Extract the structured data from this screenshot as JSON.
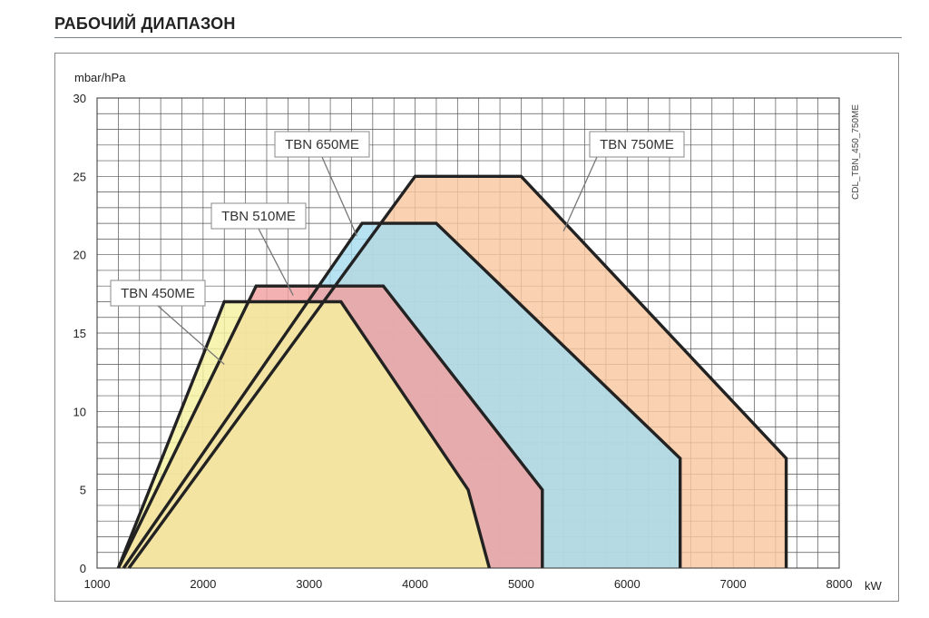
{
  "page": {
    "title": "РАБОЧИЙ ДИАПАЗОН",
    "figure_code": "CDL_TBN_450_750ME"
  },
  "chart_data": {
    "type": "area",
    "xlabel": "kW",
    "ylabel": "mbar/hPa",
    "xlim": [
      1000,
      8000
    ],
    "ylim": [
      0,
      30
    ],
    "x_ticks": [
      1000,
      2000,
      3000,
      4000,
      5000,
      6000,
      7000,
      8000
    ],
    "y_ticks": [
      0,
      5,
      10,
      15,
      20,
      25,
      30
    ],
    "grid": true,
    "series": [
      {
        "name": "TBN 750ME",
        "fill": "#f9c8a0",
        "stroke": "#222222",
        "points": [
          [
            1300,
            0
          ],
          [
            4000,
            25
          ],
          [
            5000,
            25
          ],
          [
            7500,
            7
          ],
          [
            7500,
            0
          ]
        ]
      },
      {
        "name": "TBN 650ME",
        "fill": "#a6dcef",
        "stroke": "#222222",
        "points": [
          [
            1250,
            0
          ],
          [
            3500,
            22
          ],
          [
            4200,
            22
          ],
          [
            6500,
            7
          ],
          [
            6500,
            0
          ]
        ]
      },
      {
        "name": "TBN 510ME",
        "fill": "#f0a0a0",
        "stroke": "#222222",
        "points": [
          [
            1200,
            0
          ],
          [
            2500,
            18
          ],
          [
            3700,
            18
          ],
          [
            5200,
            5
          ],
          [
            5200,
            0
          ]
        ]
      },
      {
        "name": "TBN 450ME",
        "fill": "#f5f0a0",
        "stroke": "#222222",
        "points": [
          [
            1200,
            0
          ],
          [
            2200,
            17
          ],
          [
            3300,
            17
          ],
          [
            4500,
            5
          ],
          [
            4700,
            0
          ]
        ]
      }
    ],
    "annotations": [
      {
        "text": "TBN 450ME",
        "series": "TBN 450ME",
        "point": [
          2200,
          13
        ]
      },
      {
        "text": "TBN 510ME",
        "series": "TBN 510ME",
        "point": [
          2850,
          17.4
        ]
      },
      {
        "text": "TBN 650ME",
        "series": "TBN 650ME",
        "point": [
          3450,
          21.2
        ]
      },
      {
        "text": "TBN 750ME",
        "series": "TBN 750ME",
        "point": [
          5400,
          21.5
        ]
      }
    ]
  }
}
